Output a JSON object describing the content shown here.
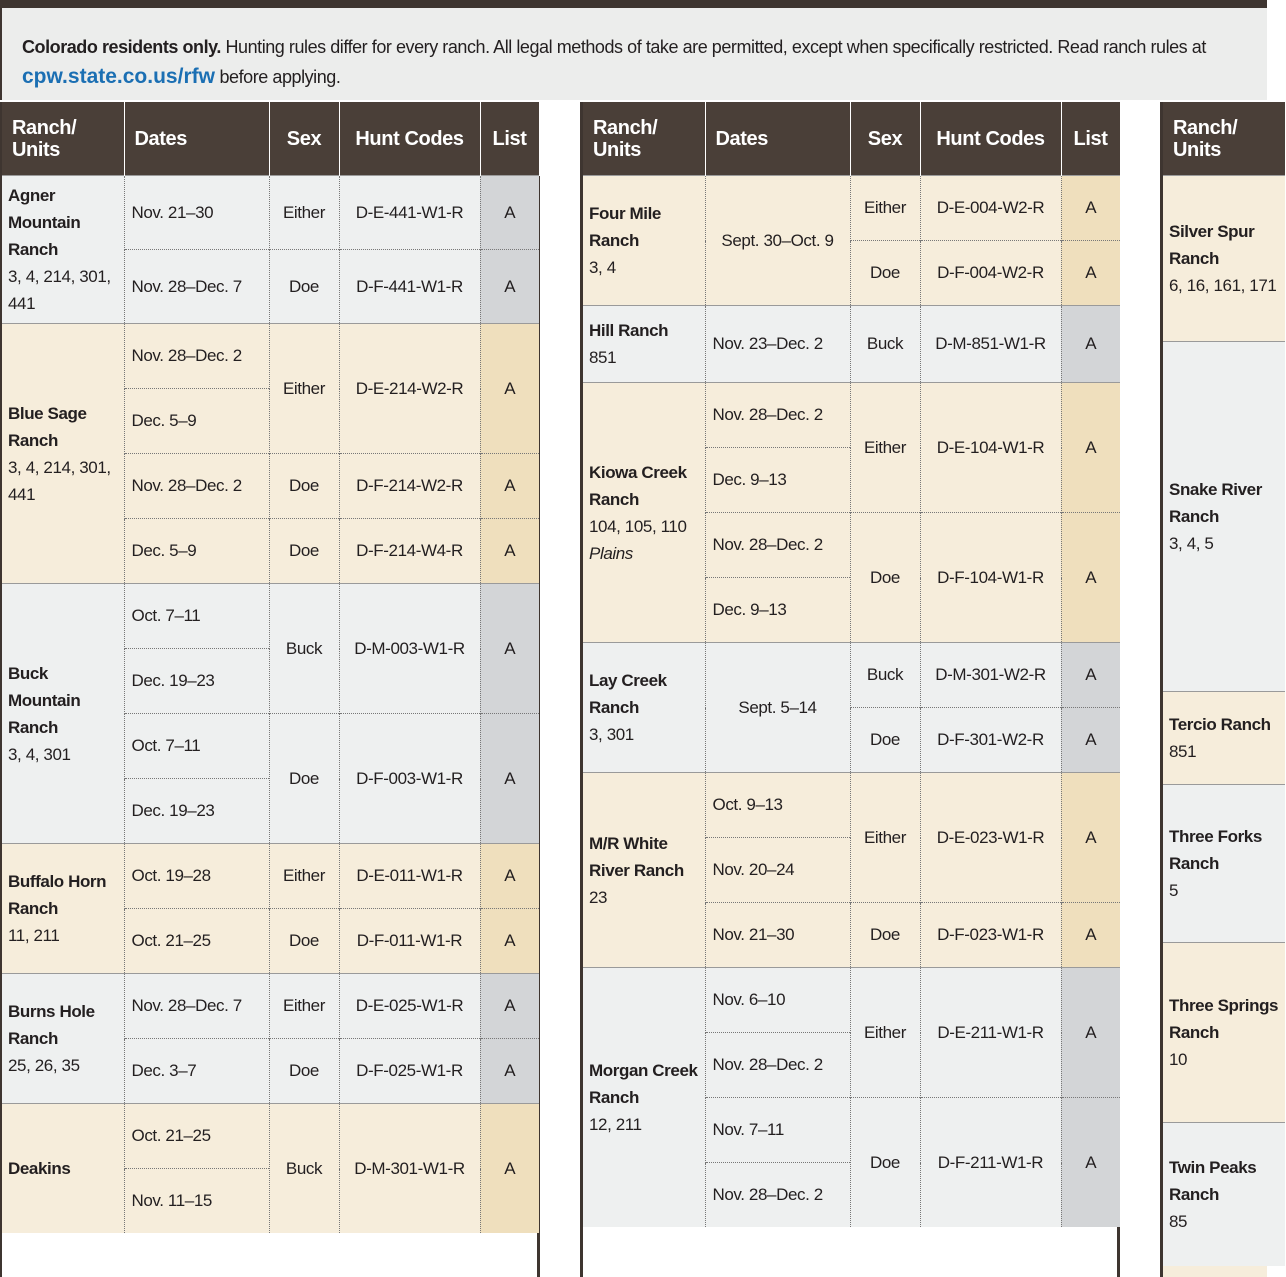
{
  "intro": {
    "bold": "Colorado residents only.",
    "text": "Hunting rules differ for every ranch. All legal methods of take are permitted, except when specifically restricted. Read ranch rules at",
    "link": "cpw.state.co.us/rfw",
    "after": "before applying."
  },
  "tables": [
    {
      "headers": [
        "Ranch/ Units",
        "Dates",
        "Sex",
        "Hunt Codes",
        "List"
      ],
      "ranches": [
        {
          "name": "Agner Mountain Ranch",
          "units": "3, 4, 214, 301, 441",
          "hunts": [
            {
              "dates": [
                "Nov. 21–30"
              ],
              "sex": "Either",
              "code": "D-E-441-W1-R",
              "list": "A"
            },
            {
              "dates": [
                "Nov. 28–Dec. 7"
              ],
              "sex": "Doe",
              "code": "D-F-441-W1-R",
              "list": "A"
            }
          ]
        },
        {
          "name": "Blue Sage Ranch",
          "units": "3, 4, 214, 301, 441",
          "hunts": [
            {
              "dates": [
                "Nov. 28–Dec. 2",
                "Dec. 5–9"
              ],
              "sex": "Either",
              "code": "D-E-214-W2-R",
              "list": "A"
            },
            {
              "dates": [
                "Nov. 28–Dec. 2"
              ],
              "sex": "Doe",
              "code": "D-F-214-W2-R",
              "list": "A"
            },
            {
              "dates": [
                "Dec. 5–9"
              ],
              "sex": "Doe",
              "code": "D-F-214-W4-R",
              "list": "A"
            }
          ]
        },
        {
          "name": "Buck Mountain Ranch",
          "units": "3, 4, 301",
          "hunts": [
            {
              "dates": [
                "Oct. 7–11",
                "Dec. 19–23"
              ],
              "sex": "Buck",
              "code": "D-M-003-W1-R",
              "list": "A"
            },
            {
              "dates": [
                "Oct. 7–11",
                "Dec. 19–23"
              ],
              "sex": "Doe",
              "code": "D-F-003-W1-R",
              "list": "A"
            }
          ]
        },
        {
          "name": "Buffalo Horn Ranch",
          "units": "11, 211",
          "hunts": [
            {
              "dates": [
                "Oct. 19–28"
              ],
              "sex": "Either",
              "code": "D-E-011-W1-R",
              "list": "A"
            },
            {
              "dates": [
                "Oct. 21–25"
              ],
              "sex": "Doe",
              "code": "D-F-011-W1-R",
              "list": "A"
            }
          ]
        },
        {
          "name": "Burns Hole Ranch",
          "units": "25, 26, 35",
          "hunts": [
            {
              "dates": [
                "Nov. 28–Dec. 7"
              ],
              "sex": "Either",
              "code": "D-E-025-W1-R",
              "list": "A"
            },
            {
              "dates": [
                "Dec. 3–7"
              ],
              "sex": "Doe",
              "code": "D-F-025-W1-R",
              "list": "A"
            }
          ]
        },
        {
          "name": "Deakins",
          "hunts": [
            {
              "dates": [
                "Oct. 21–25",
                "Nov. 11–15"
              ],
              "sex": "Buck",
              "code": "D-M-301-W1-R",
              "list": "A"
            }
          ]
        }
      ]
    },
    {
      "headers": [
        "Ranch/ Units",
        "Dates",
        "Sex",
        "Hunt Codes",
        "List"
      ],
      "ranches": [
        {
          "name": "Four Mile Ranch",
          "units": "3, 4",
          "dates": "Sept. 30–Oct. 9",
          "hunts": [
            {
              "sex": "Either",
              "code": "D-E-004-W2-R",
              "list": "A"
            },
            {
              "sex": "Doe",
              "code": "D-F-004-W2-R",
              "list": "A"
            }
          ]
        },
        {
          "name": "Hill Ranch",
          "units": "851",
          "hunts": [
            {
              "dates": [
                "Nov. 23–Dec. 2"
              ],
              "sex": "Buck",
              "code": "D-M-851-W1-R",
              "list": "A"
            }
          ]
        },
        {
          "name": "Kiowa Creek Ranch",
          "units": "104, 105, 110",
          "note": "Plains",
          "hunts": [
            {
              "dates": [
                "Nov. 28–Dec. 2",
                "Dec. 9–13"
              ],
              "sex": "Either",
              "code": "D-E-104-W1-R",
              "list": "A"
            },
            {
              "dates": [
                "Nov. 28–Dec. 2",
                "Dec. 9–13"
              ],
              "sex": "Doe",
              "code": "D-F-104-W1-R",
              "list": "A"
            }
          ]
        },
        {
          "name": "Lay Creek Ranch",
          "units": "3, 301",
          "dates": "Sept. 5–14",
          "hunts": [
            {
              "sex": "Buck",
              "code": "D-M-301-W2-R",
              "list": "A"
            },
            {
              "sex": "Doe",
              "code": "D-F-301-W2-R",
              "list": "A"
            }
          ]
        },
        {
          "name": "M/R White River Ranch",
          "units": "23",
          "hunts": [
            {
              "dates": [
                "Oct. 9–13",
                "Nov. 20–24"
              ],
              "sex": "Either",
              "code": "D-E-023-W1-R",
              "list": "A"
            },
            {
              "dates": [
                "Nov. 21–30"
              ],
              "sex": "Doe",
              "code": "D-F-023-W1-R",
              "list": "A"
            }
          ]
        },
        {
          "name": "Morgan Creek Ranch",
          "units": "12, 211",
          "hunts": [
            {
              "dates": [
                "Nov. 6–10",
                "Nov. 28–Dec. 2"
              ],
              "sex": "Either",
              "code": "D-E-211-W1-R",
              "list": "A"
            },
            {
              "dates": [
                "Nov. 7–11",
                "Nov. 28–Dec. 2"
              ],
              "sex": "Doe",
              "code": "D-F-211-W1-R",
              "list": "A"
            }
          ]
        }
      ]
    },
    {
      "headers": [
        "Ranch/ Units"
      ],
      "ranches": [
        {
          "name": "Silver Spur Ranch",
          "units": "6, 16, 161, 171"
        },
        {
          "name": "Snake River Ranch",
          "units": "3, 4, 5"
        },
        {
          "name": "Tercio Ranch",
          "units": "851"
        },
        {
          "name": "Three Forks Ranch",
          "units": "5"
        },
        {
          "name": "Three Springs Ranch",
          "units": "10"
        },
        {
          "name": "Twin Peaks Ranch",
          "units": "85"
        }
      ]
    }
  ]
}
